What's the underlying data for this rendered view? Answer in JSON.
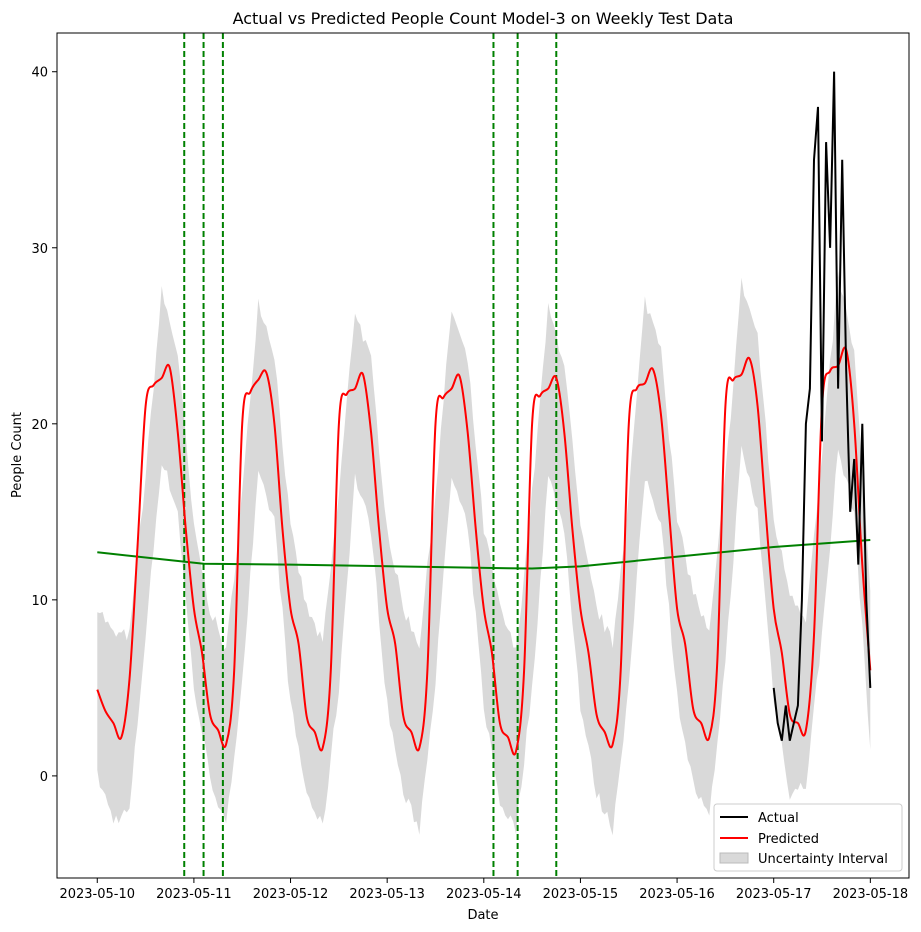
{
  "chart_data": {
    "type": "line",
    "title": "Actual vs Predicted People Count Model-3 on Weekly Test Data",
    "xlabel": "Date",
    "ylabel": "People Count",
    "xlim": [
      "2023-05-09 14:00",
      "2023-05-18 09:36"
    ],
    "ylim": [
      -5.8,
      42.2
    ],
    "x_ticks": [
      "2023-05-10",
      "2023-05-11",
      "2023-05-12",
      "2023-05-13",
      "2023-05-14",
      "2023-05-15",
      "2023-05-16",
      "2023-05-17",
      "2023-05-18"
    ],
    "y_ticks": [
      0,
      10,
      20,
      30,
      40
    ],
    "grid": false,
    "legend_position": "lower-right",
    "legend": [
      "Actual",
      "Predicted",
      "Uncertainty Interval"
    ],
    "colors": {
      "actual": "#000000",
      "predicted": "#ff0000",
      "interval": "#c0c0c0",
      "trend": "#008000",
      "changepoints": "#008000"
    },
    "series": [
      {
        "name": "Predicted",
        "x": [
          "2023-05-10 00:00",
          "2023-05-10 02:00",
          "2023-05-10 04:00",
          "2023-05-10 06:00",
          "2023-05-10 08:00",
          "2023-05-10 10:00",
          "2023-05-10 12:00",
          "2023-05-10 14:00",
          "2023-05-10 16:00",
          "2023-05-10 18:00",
          "2023-05-10 20:00",
          "2023-05-10 22:00",
          "2023-05-11 00:00",
          "2023-05-11 02:00",
          "2023-05-11 04:00",
          "2023-05-11 06:00",
          "2023-05-11 08:00",
          "2023-05-11 10:00",
          "2023-05-11 12:00",
          "2023-05-11 14:00",
          "2023-05-11 16:00",
          "2023-05-11 18:00",
          "2023-05-11 20:00",
          "2023-05-11 22:00",
          "2023-05-12 00:00",
          "2023-05-12 02:00",
          "2023-05-12 04:00",
          "2023-05-12 06:00",
          "2023-05-12 08:00",
          "2023-05-12 10:00",
          "2023-05-12 12:00",
          "2023-05-12 14:00",
          "2023-05-12 16:00",
          "2023-05-12 18:00",
          "2023-05-12 20:00",
          "2023-05-12 22:00",
          "2023-05-13 00:00",
          "2023-05-13 02:00",
          "2023-05-13 04:00",
          "2023-05-13 06:00",
          "2023-05-13 08:00",
          "2023-05-13 10:00",
          "2023-05-13 12:00",
          "2023-05-13 14:00",
          "2023-05-13 16:00",
          "2023-05-13 18:00",
          "2023-05-13 20:00",
          "2023-05-13 22:00",
          "2023-05-14 00:00",
          "2023-05-14 02:00",
          "2023-05-14 04:00",
          "2023-05-14 06:00",
          "2023-05-14 08:00",
          "2023-05-14 10:00",
          "2023-05-14 12:00",
          "2023-05-14 14:00",
          "2023-05-14 16:00",
          "2023-05-14 18:00",
          "2023-05-14 20:00",
          "2023-05-14 22:00",
          "2023-05-15 00:00",
          "2023-05-15 02:00",
          "2023-05-15 04:00",
          "2023-05-15 06:00",
          "2023-05-15 08:00",
          "2023-05-15 10:00",
          "2023-05-15 12:00",
          "2023-05-15 14:00",
          "2023-05-15 16:00",
          "2023-05-15 18:00",
          "2023-05-15 20:00",
          "2023-05-15 22:00",
          "2023-05-16 00:00",
          "2023-05-16 02:00",
          "2023-05-16 04:00",
          "2023-05-16 06:00",
          "2023-05-16 08:00",
          "2023-05-16 10:00",
          "2023-05-16 12:00",
          "2023-05-16 14:00",
          "2023-05-16 16:00",
          "2023-05-16 18:00",
          "2023-05-16 20:00",
          "2023-05-16 22:00",
          "2023-05-17 00:00",
          "2023-05-17 02:00",
          "2023-05-17 04:00",
          "2023-05-17 06:00",
          "2023-05-17 08:00",
          "2023-05-17 10:00",
          "2023-05-17 12:00",
          "2023-05-17 14:00",
          "2023-05-17 16:00",
          "2023-05-17 18:00",
          "2023-05-17 20:00",
          "2023-05-17 22:00",
          "2023-05-18 00:00"
        ],
        "y": [
          4.9,
          3.7,
          3.0,
          2.2,
          5.5,
          13.0,
          21.0,
          22.2,
          22.6,
          23.2,
          19.5,
          14.0,
          9.5,
          7.0,
          3.5,
          2.6,
          1.8,
          6.0,
          20.0,
          21.8,
          22.5,
          22.9,
          20.0,
          14.0,
          9.5,
          7.5,
          3.4,
          2.5,
          1.6,
          6.0,
          20.0,
          21.7,
          22.0,
          22.8,
          19.5,
          14.0,
          9.5,
          7.5,
          3.4,
          2.5,
          1.6,
          6.0,
          20.0,
          21.5,
          22.0,
          22.7,
          19.5,
          14.0,
          9.5,
          7.0,
          3.0,
          2.2,
          1.4,
          6.0,
          20.0,
          21.6,
          22.0,
          22.6,
          19.5,
          14.0,
          9.5,
          7.0,
          3.5,
          2.5,
          1.8,
          6.0,
          20.0,
          22.0,
          22.3,
          23.1,
          20.5,
          15.0,
          9.5,
          7.5,
          3.8,
          3.0,
          2.2,
          6.5,
          21.0,
          22.5,
          22.8,
          23.7,
          21.0,
          15.0,
          9.5,
          7.0,
          3.5,
          3.0,
          2.6,
          8.0,
          21.0,
          23.0,
          23.3,
          24.2,
          20.0,
          12.0,
          6.0
        ]
      },
      {
        "name": "Actual",
        "x": [
          "2023-05-17 00:00",
          "2023-05-17 01:00",
          "2023-05-17 02:00",
          "2023-05-17 03:00",
          "2023-05-17 04:00",
          "2023-05-17 05:00",
          "2023-05-17 06:00",
          "2023-05-17 07:00",
          "2023-05-17 08:00",
          "2023-05-17 09:00",
          "2023-05-17 10:00",
          "2023-05-17 11:00",
          "2023-05-17 12:00",
          "2023-05-17 13:00",
          "2023-05-17 14:00",
          "2023-05-17 15:00",
          "2023-05-17 16:00",
          "2023-05-17 17:00",
          "2023-05-17 18:00",
          "2023-05-17 19:00",
          "2023-05-17 20:00",
          "2023-05-17 21:00",
          "2023-05-17 22:00",
          "2023-05-17 23:00",
          "2023-05-18 00:00"
        ],
        "y": [
          5,
          3,
          2,
          4,
          2,
          3,
          4,
          10,
          20,
          22,
          35,
          38,
          19,
          36,
          30,
          40,
          22,
          35,
          23,
          15,
          18,
          12,
          20,
          10,
          5
        ]
      }
    ],
    "interval": {
      "name": "Uncertainty Interval",
      "x": [
        "2023-05-10 00:00",
        "2023-05-10 04:00",
        "2023-05-10 08:00",
        "2023-05-10 12:00",
        "2023-05-10 16:00",
        "2023-05-10 20:00",
        "2023-05-11 00:00",
        "2023-05-11 04:00",
        "2023-05-11 08:00",
        "2023-05-11 12:00",
        "2023-05-11 16:00",
        "2023-05-11 20:00",
        "2023-05-12 00:00",
        "2023-05-12 04:00",
        "2023-05-12 08:00",
        "2023-05-12 12:00",
        "2023-05-12 16:00",
        "2023-05-12 20:00",
        "2023-05-13 00:00",
        "2023-05-13 04:00",
        "2023-05-13 08:00",
        "2023-05-13 12:00",
        "2023-05-13 16:00",
        "2023-05-13 20:00",
        "2023-05-14 00:00",
        "2023-05-14 04:00",
        "2023-05-14 08:00",
        "2023-05-14 12:00",
        "2023-05-14 16:00",
        "2023-05-14 20:00",
        "2023-05-15 00:00",
        "2023-05-15 04:00",
        "2023-05-15 08:00",
        "2023-05-15 12:00",
        "2023-05-15 16:00",
        "2023-05-15 20:00",
        "2023-05-16 00:00",
        "2023-05-16 04:00",
        "2023-05-16 08:00",
        "2023-05-16 12:00",
        "2023-05-16 16:00",
        "2023-05-16 20:00",
        "2023-05-17 00:00",
        "2023-05-17 04:00",
        "2023-05-17 08:00",
        "2023-05-17 12:00",
        "2023-05-17 16:00",
        "2023-05-17 20:00",
        "2023-05-18 00:00"
      ],
      "upper": [
        9.7,
        8.0,
        8.0,
        17.0,
        27.5,
        24.0,
        14.0,
        9.5,
        7.0,
        16.0,
        27.0,
        24.0,
        14.0,
        9.5,
        7.5,
        16.0,
        26.5,
        23.5,
        14.0,
        9.5,
        7.5,
        16.0,
        26.5,
        23.5,
        14.0,
        9.5,
        7.0,
        16.0,
        26.5,
        23.5,
        14.0,
        9.5,
        7.5,
        16.0,
        27.0,
        24.5,
        14.5,
        10.5,
        8.0,
        17.0,
        28.0,
        25.0,
        14.5,
        10.5,
        9.0,
        18.0,
        28.5,
        24.0,
        10.5
      ],
      "lower": [
        0.0,
        -2.5,
        -2.0,
        8.0,
        18.0,
        15.0,
        5.0,
        0.0,
        -3.0,
        5.5,
        17.0,
        14.5,
        4.0,
        -1.0,
        -3.0,
        5.0,
        17.0,
        14.0,
        4.0,
        -1.0,
        -3.0,
        5.5,
        17.0,
        14.0,
        4.0,
        -1.5,
        -3.0,
        5.0,
        17.0,
        14.0,
        4.0,
        -1.0,
        -3.0,
        5.0,
        17.0,
        14.5,
        4.5,
        -0.5,
        -2.5,
        6.5,
        18.5,
        15.0,
        4.5,
        -1.0,
        -0.5,
        8.0,
        18.5,
        15.0,
        1.5
      ]
    },
    "trend": {
      "x": [
        "2023-05-10 00:00",
        "2023-05-11 02:24",
        "2023-05-12 00:00",
        "2023-05-14 06:00",
        "2023-05-14 12:00",
        "2023-05-15 00:00",
        "2023-05-17 00:00",
        "2023-05-18 00:00"
      ],
      "y": [
        12.7,
        12.05,
        12.0,
        11.8,
        11.78,
        11.9,
        13.0,
        13.4
      ]
    },
    "changepoints": [
      "2023-05-10 21:36",
      "2023-05-11 02:24",
      "2023-05-11 07:12",
      "2023-05-14 02:24",
      "2023-05-14 08:24",
      "2023-05-14 18:00"
    ]
  }
}
